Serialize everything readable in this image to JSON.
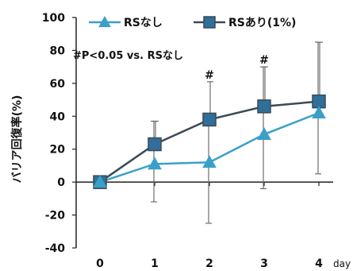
{
  "chart_data": {
    "type": "line",
    "categories": [
      "0",
      "1",
      "2",
      "3",
      "4"
    ],
    "x_unit": "day",
    "ylabel": "バリア回復率(%)",
    "ylim": [
      -40,
      100
    ],
    "yticks": [
      "100",
      "80",
      "60",
      "40",
      "20",
      "0",
      "-20",
      "-40"
    ],
    "legend_position": "top",
    "annotation": "#P<0.05 vs. RSなし",
    "significance": [
      {
        "day": 2,
        "mark": "#"
      },
      {
        "day": 3,
        "mark": "#"
      }
    ],
    "series": [
      {
        "name": "RSなし",
        "marker": "triangle",
        "color": "#3aa0c8",
        "values": [
          0,
          11,
          12,
          29,
          42
        ],
        "error_upper": [
          0,
          37,
          41,
          70,
          85
        ],
        "error_lower": [
          0,
          -12,
          -25,
          -4,
          5
        ]
      },
      {
        "name": "RSあり(1%)",
        "marker": "square",
        "color": "#2f6f9a",
        "values": [
          0,
          23,
          38,
          46,
          49
        ],
        "error_upper": [
          0,
          37,
          61,
          70,
          85
        ],
        "error_lower": [
          0,
          23,
          38,
          46,
          49
        ]
      }
    ]
  }
}
